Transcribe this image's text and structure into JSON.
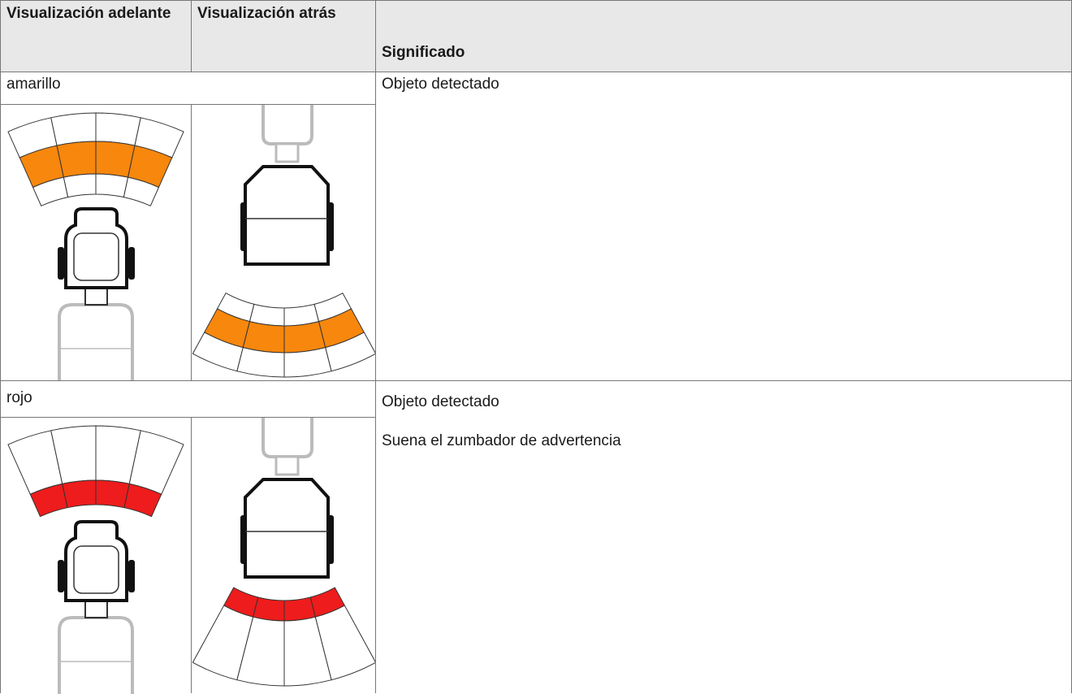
{
  "header": {
    "columns": [
      "Visualización adelante",
      "Visualización atrás",
      "Significado"
    ]
  },
  "rows": [
    {
      "label": "amarillo",
      "meaning": [
        "Objeto detectado"
      ]
    },
    {
      "label": "rojo",
      "meaning": [
        "Objeto detectado",
        "Suena el zumbador de advertencia"
      ]
    }
  ]
}
